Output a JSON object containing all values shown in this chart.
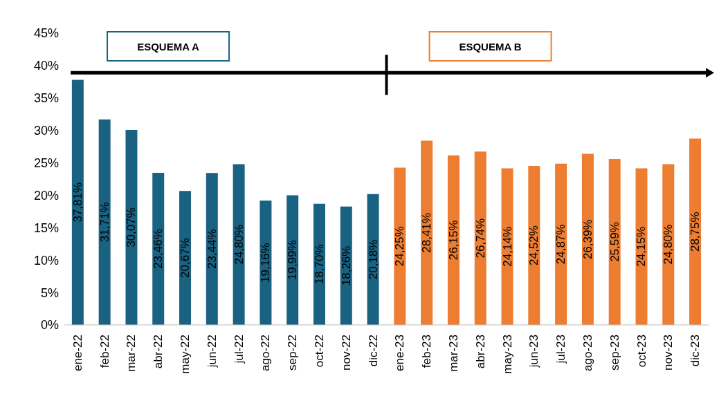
{
  "chart_data": {
    "type": "bar",
    "categories": [
      "ene-22",
      "feb-22",
      "mar-22",
      "abr-22",
      "may-22",
      "jun-22",
      "jul-22",
      "ago-22",
      "sep-22",
      "oct-22",
      "nov-22",
      "dic-22",
      "ene-23",
      "feb-23",
      "mar-23",
      "abr-23",
      "may-23",
      "jun-23",
      "jul-23",
      "ago-23",
      "sep-23",
      "oct-23",
      "nov-23",
      "dic-23"
    ],
    "values": [
      37.81,
      31.71,
      30.07,
      23.46,
      20.67,
      23.44,
      24.8,
      19.16,
      19.99,
      18.7,
      18.26,
      20.18,
      24.25,
      28.41,
      26.15,
      26.74,
      24.14,
      24.52,
      24.87,
      26.39,
      25.59,
      24.15,
      24.8,
      28.75
    ],
    "value_labels": [
      "37,81%",
      "31,71%",
      "30,07%",
      "23,46%",
      "20,67%",
      "23,44%",
      "24,80%",
      "19,16%",
      "19,99%",
      "18,70%",
      "18,26%",
      "20,18%",
      "24,25%",
      "28,41%",
      "26,15%",
      "26,74%",
      "24,14%",
      "24,52%",
      "24,87%",
      "26,39%",
      "25,59%",
      "24,15%",
      "24,80%",
      "28,75%"
    ],
    "colors": [
      "#1a6282",
      "#1a6282",
      "#1a6282",
      "#1a6282",
      "#1a6282",
      "#1a6282",
      "#1a6282",
      "#1a6282",
      "#1a6282",
      "#1a6282",
      "#1a6282",
      "#1a6282",
      "#ed7d31",
      "#ed7d31",
      "#ed7d31",
      "#ed7d31",
      "#ed7d31",
      "#ed7d31",
      "#ed7d31",
      "#ed7d31",
      "#ed7d31",
      "#ed7d31",
      "#ed7d31",
      "#ed7d31"
    ],
    "ylim": [
      0,
      45
    ],
    "yticks": [
      {
        "value": 0,
        "label": "0%"
      },
      {
        "value": 5,
        "label": "5%"
      },
      {
        "value": 10,
        "label": "10%"
      },
      {
        "value": 15,
        "label": "15%"
      },
      {
        "value": 20,
        "label": "20%"
      },
      {
        "value": 25,
        "label": "25%"
      },
      {
        "value": 30,
        "label": "30%"
      },
      {
        "value": 35,
        "label": "35%"
      },
      {
        "value": 40,
        "label": "40%"
      },
      {
        "value": 45,
        "label": "45%"
      }
    ],
    "annotations": [
      "ESQUEMA A",
      "ESQUEMA B"
    ],
    "grid": false
  }
}
